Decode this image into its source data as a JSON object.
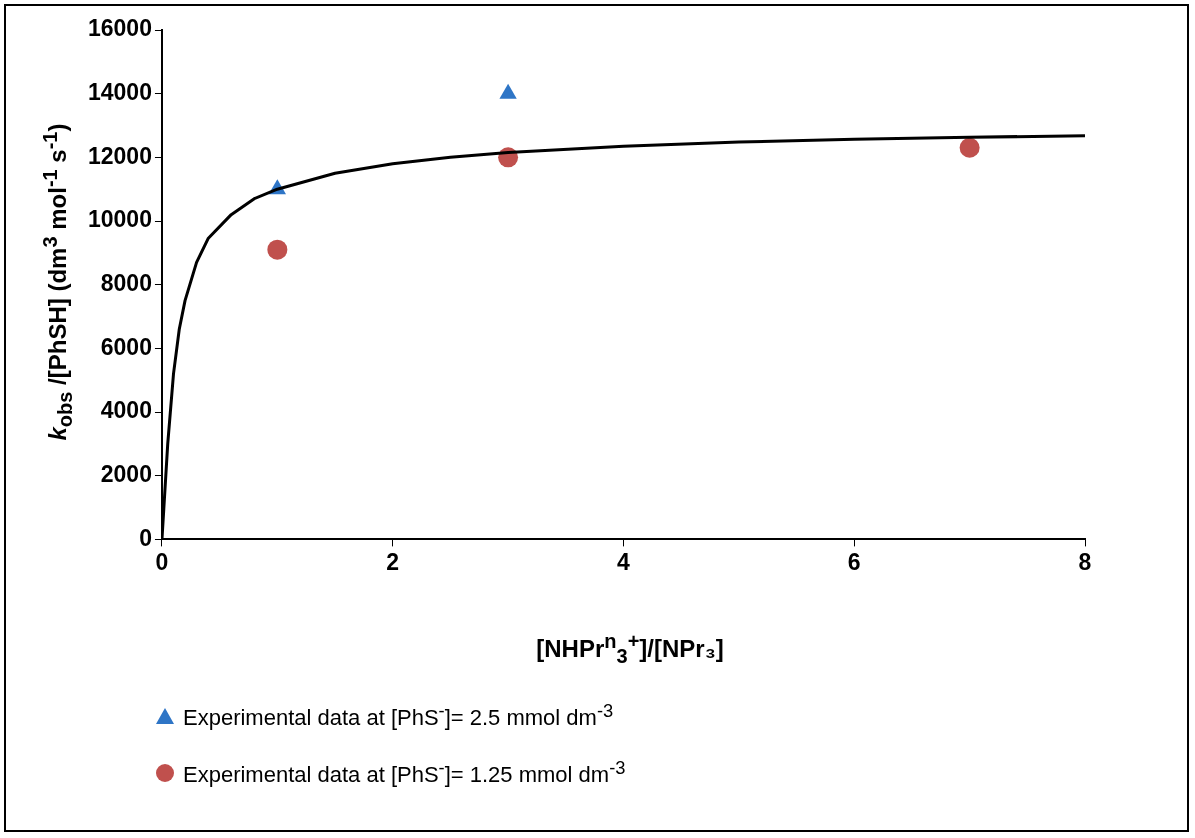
{
  "chart_data": {
    "type": "scatter",
    "xlabel": "[NHPr$^{n}$$_{3}$$^{+}$]/[NPr₃]",
    "ylabel": "k$_{obs}$ /[PhSH]  (dm$^{3}$ mol$^{-1}$ s$^{-1}$)",
    "xlim": [
      0,
      8
    ],
    "xticks": [
      0,
      2,
      4,
      6,
      8
    ],
    "ylim": [
      0,
      16000
    ],
    "yticks": [
      0,
      2000,
      4000,
      6000,
      8000,
      10000,
      12000,
      14000,
      16000
    ],
    "legend": "bottom",
    "series": [
      {
        "name": "Experimental data at [PhS$^{-}$]= 2.5 mmol dm$^{-3}$",
        "marker": "triangle",
        "color": "#2e75c6",
        "x": [
          1,
          3
        ],
        "values": [
          11000,
          14000
        ]
      },
      {
        "name": "Experimental data at [PhS$^{-}$]= 1.25 mmol dm$^{-3}$",
        "marker": "circle",
        "color": "#c0504d",
        "x": [
          1,
          3,
          7
        ],
        "values": [
          9100,
          12000,
          12300
        ]
      },
      {
        "type": "line",
        "marker": "none",
        "color": "#000000",
        "x": [
          0,
          0.05,
          0.1,
          0.15,
          0.2,
          0.3,
          0.4,
          0.6,
          0.8,
          1,
          1.5,
          2,
          2.5,
          3,
          4,
          5,
          6,
          7,
          8
        ],
        "values": [
          0,
          3000,
          5200,
          6600,
          7500,
          8700,
          9450,
          10200,
          10700,
          11000,
          11500,
          11800,
          12000,
          12150,
          12350,
          12480,
          12570,
          12630,
          12680
        ]
      }
    ]
  }
}
